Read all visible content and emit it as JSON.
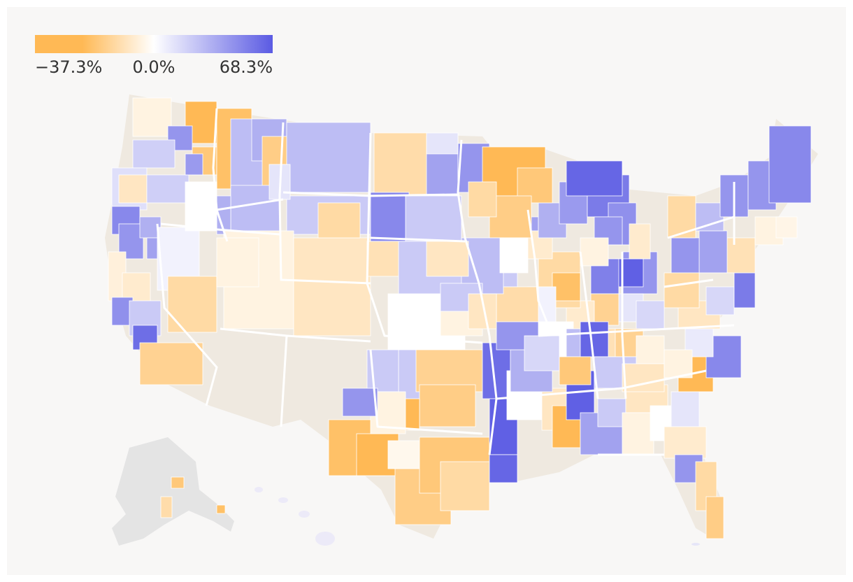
{
  "legend": {
    "min_label": "−37.3%",
    "mid_label": "0.0%",
    "max_label": "68.3%",
    "min_value": -37.3,
    "mid_value": 0.0,
    "max_value": 68.3,
    "colors": {
      "negative": "#ffb955",
      "neutral": "#ffffff",
      "positive": "#5b5be3",
      "no_data": "#d3d3d3",
      "alaska_base": "#e4e4e4",
      "background": "#f8f7f6"
    }
  },
  "map_data": {
    "type": "choropleth",
    "extent": "United States",
    "value_unit": "%",
    "scale": "diverging"
  }
}
